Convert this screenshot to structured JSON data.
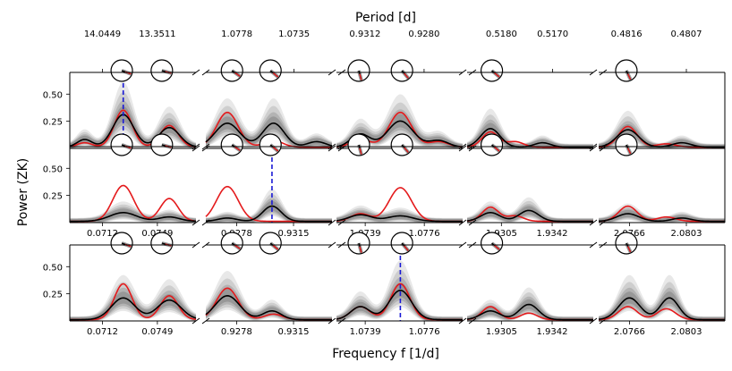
{
  "figure": {
    "top_axis_label": "Period [d]",
    "bottom_axis_label": "Frequency f [1/d]",
    "y_axis_label": "Power (ZK)"
  },
  "chart_data": {
    "type": "line",
    "title": "",
    "xlabel": "Frequency f [1/d]",
    "ylabel": "Power (ZK)",
    "x2label": "Period [d]",
    "ylim": [
      0,
      0.7
    ],
    "y_ticks": [
      0.5,
      0.25
    ],
    "y_tick_labels": [
      "0.50",
      "0.25"
    ],
    "columns": [
      {
        "xlim": [
          0.069,
          0.0775
        ],
        "freq_ticks": [
          0.0712,
          0.0749
        ],
        "freq_tick_labels": [
          "0.0712",
          "0.0749"
        ],
        "period_ticks": [
          14.0449,
          13.3511
        ],
        "period_tick_labels": [
          "14.0449",
          "13.3511"
        ],
        "dials_at": [
          0.0725,
          0.0752
        ],
        "dial_angles": [
          -20,
          -15
        ]
      },
      {
        "xlim": [
          0.9258,
          0.934
        ],
        "freq_ticks": [
          0.9278,
          0.9315
        ],
        "freq_tick_labels": [
          "0.9278",
          "0.9315"
        ],
        "period_ticks": [
          1.0778,
          1.0735
        ],
        "period_tick_labels": [
          "1.0778",
          "1.0735"
        ],
        "dials_at": [
          0.9275,
          0.93
        ],
        "dial_angles": [
          -35,
          -40
        ]
      },
      {
        "xlim": [
          1.0721,
          1.08
        ],
        "freq_ticks": [
          1.0739,
          1.0776
        ],
        "freq_tick_labels": [
          "1.0739",
          "1.0776"
        ],
        "period_ticks": [
          0.9312,
          0.928
        ],
        "period_tick_labels": [
          "0.9312",
          "0.9280"
        ],
        "dials_at": [
          1.0735,
          1.0762
        ],
        "dial_angles": [
          -75,
          -50
        ]
      },
      {
        "xlim": [
          1.928,
          1.9372
        ],
        "freq_ticks": [
          1.9305,
          1.9342
        ],
        "freq_tick_labels": [
          "1.9305",
          "1.9342"
        ],
        "period_ticks": [
          0.518,
          0.517
        ],
        "period_tick_labels": [
          "0.5180",
          "0.5170"
        ],
        "dials_at": [
          1.9298
        ],
        "dial_angles": [
          -40
        ]
      },
      {
        "xlim": [
          2.0746,
          2.0828
        ],
        "freq_ticks": [
          2.0766,
          2.0803
        ],
        "freq_tick_labels": [
          "2.0766",
          "2.0803"
        ],
        "period_ticks": [
          0.4816,
          0.4807
        ],
        "period_tick_labels": [
          "0.4816",
          "0.4807"
        ],
        "dials_at": [
          2.0764
        ],
        "dial_angles": [
          -65
        ]
      }
    ],
    "freq_label_rows": [
      1,
      2,
      3
    ],
    "period_label_rows": [
      0
    ],
    "detections": [
      {
        "row": 0,
        "col": 0,
        "f": 0.0726
      },
      {
        "row": 1,
        "col": 1,
        "f": 0.9301
      },
      {
        "row": 2,
        "col": 2,
        "f": 1.0761
      }
    ],
    "series": [
      {
        "name": "median",
        "color": "#000000"
      },
      {
        "name": "reference",
        "color": "#e41a1c"
      }
    ],
    "peaks": {
      "median": [
        [
          [
            [
              0.0726,
              0.3,
              0.0007
            ],
            [
              0.0757,
              0.18,
              0.0007
            ],
            [
              0.07,
              0.07,
              0.0005
            ]
          ],
          [
            [
              0.9272,
              0.22,
              0.0008
            ],
            [
              0.9302,
              0.22,
              0.0007
            ],
            [
              0.933,
              0.05,
              0.0006
            ]
          ],
          [
            [
              1.0736,
              0.12,
              0.0006
            ],
            [
              1.0761,
              0.24,
              0.0008
            ],
            [
              1.0785,
              0.06,
              0.0006
            ]
          ],
          [
            [
              1.9297,
              0.17,
              0.0007
            ],
            [
              1.9335,
              0.04,
              0.0006
            ]
          ],
          [
            [
              2.0765,
              0.16,
              0.0007
            ],
            [
              2.08,
              0.04,
              0.0006
            ]
          ]
        ],
        [
          [
            [
              0.0726,
              0.08,
              0.0009
            ],
            [
              0.0757,
              0.04,
              0.0007
            ]
          ],
          [
            [
              0.9272,
              0.03,
              0.0006
            ],
            [
              0.9301,
              0.14,
              0.0006
            ]
          ],
          [
            [
              1.0736,
              0.06,
              0.0007
            ],
            [
              1.0761,
              0.05,
              0.0008
            ]
          ],
          [
            [
              1.9297,
              0.08,
              0.0007
            ],
            [
              1.9325,
              0.1,
              0.0007
            ]
          ],
          [
            [
              2.0765,
              0.07,
              0.0007
            ],
            [
              2.08,
              0.03,
              0.0006
            ]
          ]
        ],
        [
          [
            [
              0.0726,
              0.2,
              0.0008
            ],
            [
              0.0757,
              0.18,
              0.0008
            ]
          ],
          [
            [
              0.9272,
              0.22,
              0.0008
            ],
            [
              0.9301,
              0.08,
              0.0006
            ]
          ],
          [
            [
              1.0736,
              0.12,
              0.0006
            ],
            [
              1.0761,
              0.27,
              0.0007
            ]
          ],
          [
            [
              1.9297,
              0.08,
              0.0007
            ],
            [
              1.9325,
              0.14,
              0.0007
            ]
          ],
          [
            [
              2.0766,
              0.2,
              0.0007
            ],
            [
              2.0792,
              0.2,
              0.0006
            ]
          ]
        ]
      ],
      "reference": [
        [
          [
            [
              0.0726,
              0.34,
              0.0006
            ],
            [
              0.0757,
              0.2,
              0.0006
            ],
            [
              0.07,
              0.04,
              0.0005
            ]
          ],
          [
            [
              0.9272,
              0.32,
              0.0007
            ],
            [
              0.9302,
              0.06,
              0.0006
            ]
          ],
          [
            [
              1.0736,
              0.07,
              0.0006
            ],
            [
              1.0761,
              0.32,
              0.0007
            ],
            [
              1.0785,
              0.05,
              0.0006
            ]
          ],
          [
            [
              1.9297,
              0.14,
              0.0006
            ],
            [
              1.9315,
              0.05,
              0.0006
            ]
          ],
          [
            [
              2.0765,
              0.19,
              0.0006
            ],
            [
              2.079,
              0.03,
              0.0006
            ]
          ]
        ],
        [
          [
            [
              0.0726,
              0.33,
              0.0007
            ],
            [
              0.0757,
              0.21,
              0.0006
            ]
          ],
          [
            [
              0.9272,
              0.32,
              0.0007
            ]
          ],
          [
            [
              1.0736,
              0.07,
              0.0006
            ],
            [
              1.0761,
              0.31,
              0.0007
            ]
          ],
          [
            [
              1.9297,
              0.13,
              0.0006
            ],
            [
              1.9315,
              0.05,
              0.0006
            ]
          ],
          [
            [
              2.0765,
              0.14,
              0.0006
            ],
            [
              2.079,
              0.04,
              0.0006
            ]
          ]
        ],
        [
          [
            [
              0.0726,
              0.33,
              0.0006
            ],
            [
              0.0757,
              0.22,
              0.0006
            ]
          ],
          [
            [
              0.9272,
              0.29,
              0.0007
            ],
            [
              0.9302,
              0.05,
              0.0006
            ]
          ],
          [
            [
              1.0736,
              0.12,
              0.0006
            ],
            [
              1.0761,
              0.33,
              0.0006
            ]
          ],
          [
            [
              1.9297,
              0.12,
              0.0006
            ],
            [
              1.9325,
              0.06,
              0.0006
            ]
          ],
          [
            [
              2.0765,
              0.12,
              0.0006
            ],
            [
              2.079,
              0.1,
              0.0006
            ]
          ]
        ]
      ]
    }
  }
}
